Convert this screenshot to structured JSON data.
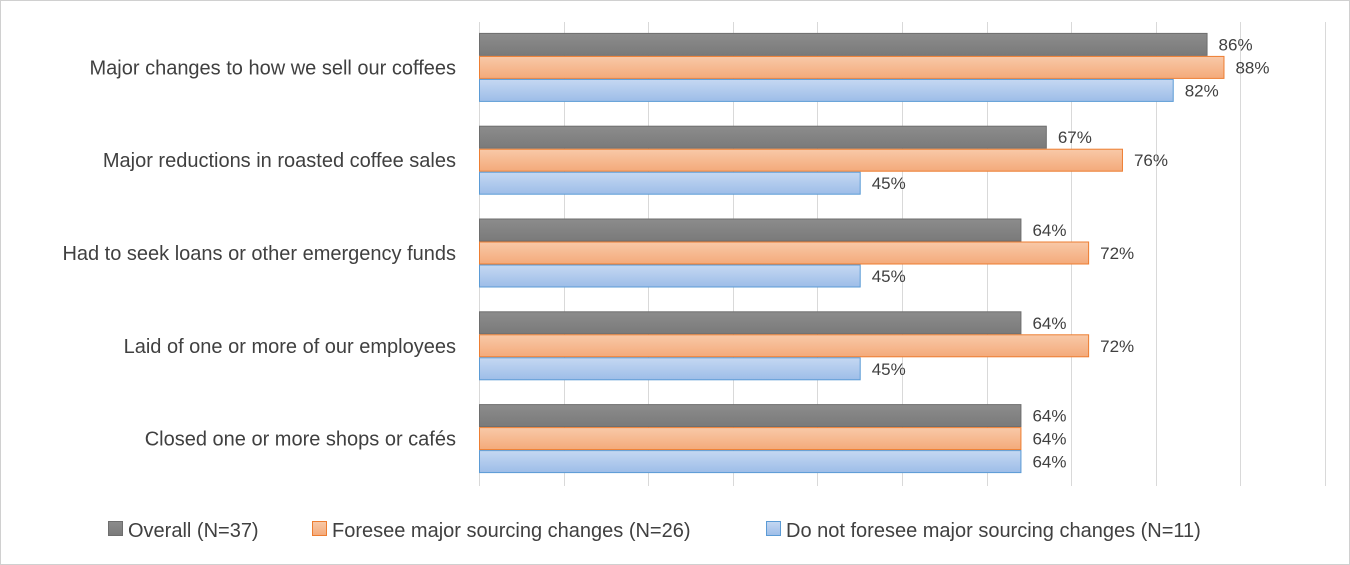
{
  "chart_data": {
    "type": "bar",
    "orientation": "horizontal",
    "categories": [
      "Major changes to how we sell our coffees",
      "Major reductions in roasted coffee sales",
      "Had to seek loans or other emergency funds",
      "Laid of one or more of our employees",
      "Closed one or more shops or cafés"
    ],
    "series": [
      {
        "name": "Overall (N=37)",
        "values": [
          86,
          67,
          64,
          64,
          64
        ],
        "labels": [
          "86%",
          "67%",
          "64%",
          "64%",
          "64%"
        ],
        "fill": "#808080",
        "stroke": "#6e6e6e"
      },
      {
        "name": "Foresee major sourcing changes (N=26)",
        "values": [
          88,
          76,
          72,
          72,
          64
        ],
        "labels": [
          "88%",
          "76%",
          "72%",
          "72%",
          "64%"
        ],
        "fill": "#f4b183",
        "stroke": "#ed7d31"
      },
      {
        "name": "Do not foresee major sourcing changes (N=11)",
        "values": [
          82,
          45,
          45,
          45,
          64
        ],
        "labels": [
          "82%",
          "45%",
          "45%",
          "45%",
          "64%"
        ],
        "fill": "#a9c4eb",
        "stroke": "#5b9bd5"
      }
    ],
    "xlim": [
      0,
      100
    ],
    "grid": true,
    "legend_position": "bottom",
    "title": "",
    "xlabel": "",
    "ylabel": ""
  }
}
